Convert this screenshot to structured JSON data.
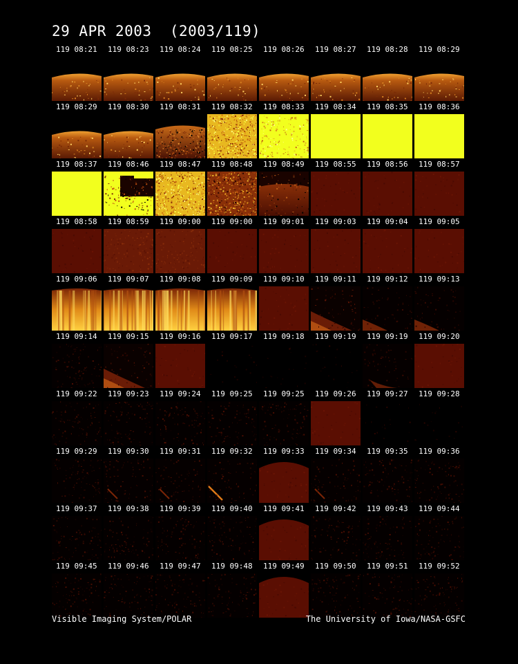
{
  "title": "29 APR 2003  (2003/119)",
  "footer": {
    "left": "Visible Imaging System/POLAR",
    "right": "The University of Iowa/NASA-GSFC"
  },
  "colors": {
    "background": "#000000",
    "dark_red": "#5a0e02",
    "yellow": "#f2ff1e",
    "orange": "#e07a10"
  },
  "frames": [
    [
      {
        "label": "119 08:21",
        "kind": "limb"
      },
      {
        "label": "119 08:23",
        "kind": "limb"
      },
      {
        "label": "119 08:24",
        "kind": "limb"
      },
      {
        "label": "119 08:25",
        "kind": "limb"
      },
      {
        "label": "119 08:26",
        "kind": "limb"
      },
      {
        "label": "119 08:27",
        "kind": "limb"
      },
      {
        "label": "119 08:28",
        "kind": "limb"
      },
      {
        "label": "119 08:29",
        "kind": "limb"
      }
    ],
    [
      {
        "label": "119 08:29",
        "kind": "limb"
      },
      {
        "label": "119 08:30",
        "kind": "limb"
      },
      {
        "label": "119 08:31",
        "kind": "limb_noisy"
      },
      {
        "label": "119 08:32",
        "kind": "speckle_yellow"
      },
      {
        "label": "119 08:33",
        "kind": "speckle_bright"
      },
      {
        "label": "119 08:34",
        "kind": "yellow"
      },
      {
        "label": "119 08:35",
        "kind": "yellow"
      },
      {
        "label": "119 08:36",
        "kind": "yellow"
      }
    ],
    [
      {
        "label": "119 08:37",
        "kind": "yellow"
      },
      {
        "label": "119 08:46",
        "kind": "yellow_block"
      },
      {
        "label": "119 08:47",
        "kind": "speckle_yellow"
      },
      {
        "label": "119 08:48",
        "kind": "speckle_mixed"
      },
      {
        "label": "119 08:49",
        "kind": "limb_dark"
      },
      {
        "label": "119 08:55",
        "kind": "darkred"
      },
      {
        "label": "119 08:56",
        "kind": "darkred"
      },
      {
        "label": "119 08:57",
        "kind": "darkred"
      }
    ],
    [
      {
        "label": "119 08:58",
        "kind": "darkred"
      },
      {
        "label": "119 08:59",
        "kind": "darkred_glow"
      },
      {
        "label": "119 09:00",
        "kind": "darkred_glow"
      },
      {
        "label": "119 09:00",
        "kind": "darkred"
      },
      {
        "label": "119 09:01",
        "kind": "darkred"
      },
      {
        "label": "119 09:03",
        "kind": "darkred"
      },
      {
        "label": "119 09:04",
        "kind": "darkred"
      },
      {
        "label": "119 09:05",
        "kind": "darkred"
      }
    ],
    [
      {
        "label": "119 09:06",
        "kind": "streak"
      },
      {
        "label": "119 09:07",
        "kind": "streak"
      },
      {
        "label": "119 09:08",
        "kind": "streak"
      },
      {
        "label": "119 09:09",
        "kind": "streak"
      },
      {
        "label": "119 09:10",
        "kind": "darkred"
      },
      {
        "label": "119 09:11",
        "kind": "diag_arc"
      },
      {
        "label": "119 09:12",
        "kind": "diag_faint"
      },
      {
        "label": "119 09:13",
        "kind": "diag_faint"
      }
    ],
    [
      {
        "label": "119 09:14",
        "kind": "faint"
      },
      {
        "label": "119 09:15",
        "kind": "diag_arc"
      },
      {
        "label": "119 09:16",
        "kind": "darkred"
      },
      {
        "label": "119 09:17",
        "kind": "black"
      },
      {
        "label": "119 09:18",
        "kind": "black"
      },
      {
        "label": "119 09:19",
        "kind": "black"
      },
      {
        "label": "119 09:19",
        "kind": "faint_arc"
      },
      {
        "label": "119 09:20",
        "kind": "darkred"
      }
    ],
    [
      {
        "label": "119 09:22",
        "kind": "faint"
      },
      {
        "label": "119 09:23",
        "kind": "faint"
      },
      {
        "label": "119 09:24",
        "kind": "faint"
      },
      {
        "label": "119 09:25",
        "kind": "faint"
      },
      {
        "label": "119 09:25",
        "kind": "faint"
      },
      {
        "label": "119 09:26",
        "kind": "darkred"
      },
      {
        "label": "119 09:27",
        "kind": "black"
      },
      {
        "label": "119 09:28",
        "kind": "black"
      }
    ],
    [
      {
        "label": "119 09:29",
        "kind": "faint"
      },
      {
        "label": "119 09:30",
        "kind": "faint_streak"
      },
      {
        "label": "119 09:31",
        "kind": "faint_streak"
      },
      {
        "label": "119 09:32",
        "kind": "faint_streak_bright"
      },
      {
        "label": "119 09:33",
        "kind": "darkred_dome"
      },
      {
        "label": "119 09:34",
        "kind": "faint_streak"
      },
      {
        "label": "119 09:35",
        "kind": "faint"
      },
      {
        "label": "119 09:36",
        "kind": "faint"
      }
    ],
    [
      {
        "label": "119 09:37",
        "kind": "faint"
      },
      {
        "label": "119 09:38",
        "kind": "faint"
      },
      {
        "label": "119 09:39",
        "kind": "faint"
      },
      {
        "label": "119 09:40",
        "kind": "faint"
      },
      {
        "label": "119 09:41",
        "kind": "darkred_dome"
      },
      {
        "label": "119 09:42",
        "kind": "faint"
      },
      {
        "label": "119 09:43",
        "kind": "faint"
      },
      {
        "label": "119 09:44",
        "kind": "faint"
      }
    ],
    [
      {
        "label": "119 09:45",
        "kind": "faint"
      },
      {
        "label": "119 09:46",
        "kind": "faint"
      },
      {
        "label": "119 09:47",
        "kind": "faint"
      },
      {
        "label": "119 09:48",
        "kind": "faint"
      },
      {
        "label": "119 09:49",
        "kind": "darkred_dome"
      },
      {
        "label": "119 09:50",
        "kind": "faint"
      },
      {
        "label": "119 09:51",
        "kind": "faint"
      },
      {
        "label": "119 09:52",
        "kind": "faint"
      }
    ]
  ]
}
